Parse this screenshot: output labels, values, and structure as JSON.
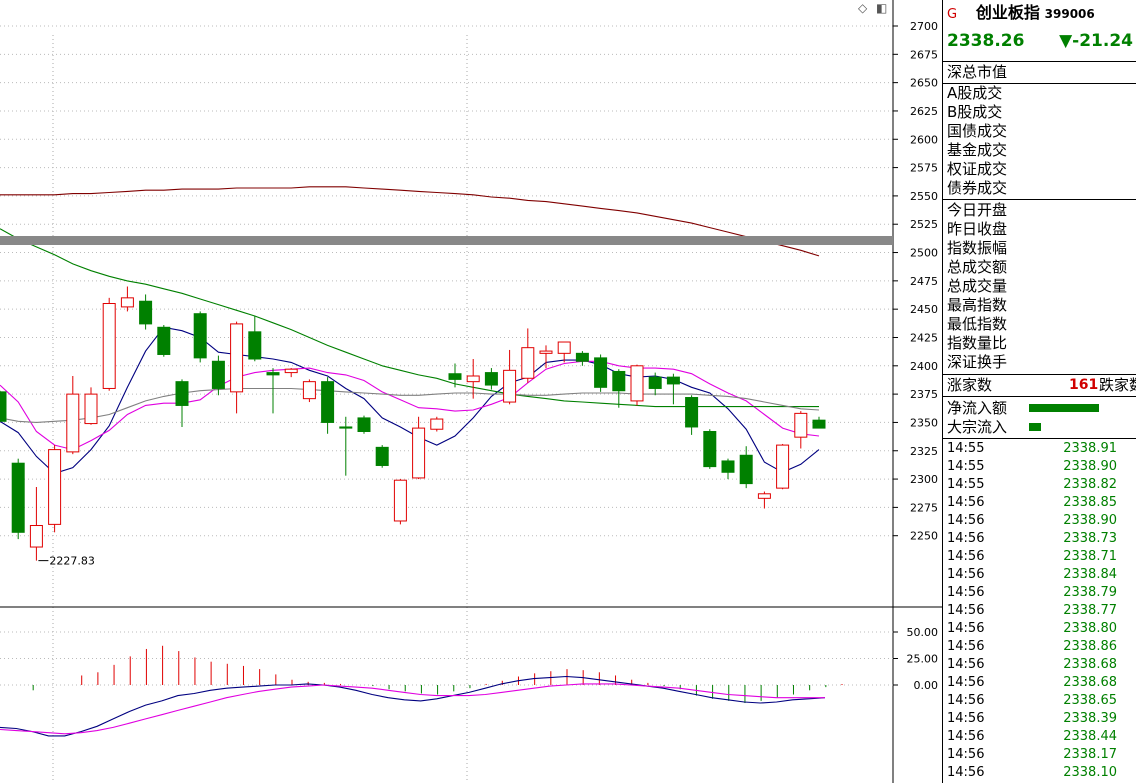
{
  "header": {
    "logo_letter": "G",
    "index_name": "创业板指",
    "index_code": "399006",
    "last_price": "2338.26",
    "change": "▼-21.24"
  },
  "panel": {
    "market_label": "深总市值",
    "trade_labels": [
      "A股成交",
      "B股成交",
      "国债成交",
      "基金成交",
      "权证成交",
      "债券成交"
    ],
    "index_labels": [
      "今日开盘",
      "昨日收盘",
      "指数振幅",
      "总成交额",
      "总成交量",
      "最高指数",
      "最低指数",
      "指数量比",
      "深证换手"
    ],
    "rise_label": "涨家数",
    "rise_count": "161",
    "fall_label": "跌家数",
    "net_inflow_label": "净流入额",
    "block_inflow_label": "大宗流入"
  },
  "ticks": [
    {
      "time": "14:55",
      "price": "2338.91"
    },
    {
      "time": "14:55",
      "price": "2338.90"
    },
    {
      "time": "14:55",
      "price": "2338.82"
    },
    {
      "time": "14:56",
      "price": "2338.85"
    },
    {
      "time": "14:56",
      "price": "2338.90"
    },
    {
      "time": "14:56",
      "price": "2338.73"
    },
    {
      "time": "14:56",
      "price": "2338.71"
    },
    {
      "time": "14:56",
      "price": "2338.84"
    },
    {
      "time": "14:56",
      "price": "2338.79"
    },
    {
      "time": "14:56",
      "price": "2338.77"
    },
    {
      "time": "14:56",
      "price": "2338.80"
    },
    {
      "time": "14:56",
      "price": "2338.86"
    },
    {
      "time": "14:56",
      "price": "2338.68"
    },
    {
      "time": "14:56",
      "price": "2338.68"
    },
    {
      "time": "14:56",
      "price": "2338.65"
    },
    {
      "time": "14:56",
      "price": "2338.39"
    },
    {
      "time": "14:56",
      "price": "2338.44"
    },
    {
      "time": "14:56",
      "price": "2338.17"
    },
    {
      "time": "14:56",
      "price": "2338.10"
    }
  ],
  "colors": {
    "up": "#e00000",
    "down": "#008000",
    "ma_short": "#000080",
    "ma_mid": "#e000e0",
    "ma_long": "#008000",
    "ma_longer": "#808080",
    "ma_longest": "#800000"
  },
  "chart_data": [
    {
      "type": "candlestick",
      "ylim": [
        2225,
        2715
      ],
      "yticks": [
        "2700",
        "2675",
        "2650",
        "2625",
        "2600",
        "2575",
        "2550",
        "2525",
        "2500",
        "2475",
        "2450",
        "2425",
        "2400",
        "2375",
        "2350",
        "2325",
        "2300",
        "2275",
        "2250"
      ],
      "grid": true,
      "low_annotation": "2227.83",
      "candles": [
        {
          "o": 2377,
          "h": 2378,
          "l": 2351,
          "c": 2351
        },
        {
          "o": 2314,
          "h": 2318,
          "l": 2247,
          "c": 2253
        },
        {
          "o": 2240,
          "h": 2293,
          "l": 2228,
          "c": 2259
        },
        {
          "o": 2260,
          "h": 2330,
          "l": 2253,
          "c": 2326
        },
        {
          "o": 2324,
          "h": 2391,
          "l": 2322,
          "c": 2375
        },
        {
          "o": 2349,
          "h": 2381,
          "l": 2348,
          "c": 2375
        },
        {
          "o": 2380,
          "h": 2460,
          "l": 2378,
          "c": 2455
        },
        {
          "o": 2452,
          "h": 2470,
          "l": 2448,
          "c": 2460
        },
        {
          "o": 2457,
          "h": 2463,
          "l": 2432,
          "c": 2437
        },
        {
          "o": 2434,
          "h": 2436,
          "l": 2408,
          "c": 2410
        },
        {
          "o": 2386,
          "h": 2388,
          "l": 2346,
          "c": 2365
        },
        {
          "o": 2446,
          "h": 2448,
          "l": 2403,
          "c": 2407
        },
        {
          "o": 2404,
          "h": 2409,
          "l": 2374,
          "c": 2380
        },
        {
          "o": 2377,
          "h": 2439,
          "l": 2358,
          "c": 2437
        },
        {
          "o": 2430,
          "h": 2444,
          "l": 2404,
          "c": 2406
        },
        {
          "o": 2394,
          "h": 2398,
          "l": 2358,
          "c": 2392
        },
        {
          "o": 2394,
          "h": 2398,
          "l": 2390,
          "c": 2397
        },
        {
          "o": 2371,
          "h": 2388,
          "l": 2368,
          "c": 2386
        },
        {
          "o": 2386,
          "h": 2390,
          "l": 2340,
          "c": 2350
        },
        {
          "o": 2346,
          "h": 2355,
          "l": 2303,
          "c": 2345
        },
        {
          "o": 2354,
          "h": 2356,
          "l": 2340,
          "c": 2342
        },
        {
          "o": 2328,
          "h": 2330,
          "l": 2310,
          "c": 2312
        },
        {
          "o": 2263,
          "h": 2300,
          "l": 2260,
          "c": 2299
        },
        {
          "o": 2301,
          "h": 2355,
          "l": 2300,
          "c": 2345
        },
        {
          "o": 2344,
          "h": 2355,
          "l": 2342,
          "c": 2353
        },
        {
          "o": 2393,
          "h": 2402,
          "l": 2381,
          "c": 2388
        },
        {
          "o": 2386,
          "h": 2406,
          "l": 2371,
          "c": 2391
        },
        {
          "o": 2394,
          "h": 2398,
          "l": 2379,
          "c": 2383
        },
        {
          "o": 2368,
          "h": 2414,
          "l": 2366,
          "c": 2396
        },
        {
          "o": 2389,
          "h": 2433,
          "l": 2385,
          "c": 2416
        },
        {
          "o": 2411,
          "h": 2418,
          "l": 2398,
          "c": 2413
        },
        {
          "o": 2411,
          "h": 2421,
          "l": 2403,
          "c": 2421
        },
        {
          "o": 2411,
          "h": 2413,
          "l": 2400,
          "c": 2404
        },
        {
          "o": 2407,
          "h": 2410,
          "l": 2377,
          "c": 2381
        },
        {
          "o": 2395,
          "h": 2397,
          "l": 2363,
          "c": 2378
        },
        {
          "o": 2369,
          "h": 2401,
          "l": 2365,
          "c": 2400
        },
        {
          "o": 2390,
          "h": 2394,
          "l": 2374,
          "c": 2380
        },
        {
          "o": 2390,
          "h": 2393,
          "l": 2366,
          "c": 2384
        },
        {
          "o": 2372,
          "h": 2374,
          "l": 2339,
          "c": 2346
        },
        {
          "o": 2342,
          "h": 2344,
          "l": 2309,
          "c": 2311
        },
        {
          "o": 2316,
          "h": 2318,
          "l": 2300,
          "c": 2306
        },
        {
          "o": 2321,
          "h": 2329,
          "l": 2292,
          "c": 2296
        },
        {
          "o": 2283,
          "h": 2289,
          "l": 2274,
          "c": 2287
        },
        {
          "o": 2292,
          "h": 2331,
          "l": 2291,
          "c": 2330
        },
        {
          "o": 2337,
          "h": 2360,
          "l": 2327,
          "c": 2358
        },
        {
          "o": 2352,
          "h": 2355,
          "l": 2345,
          "c": 2345
        }
      ],
      "ma_lines": [
        {
          "name": "ma_short",
          "values": [
            2351,
            2341,
            2320,
            2305,
            2310,
            2326,
            2347,
            2381,
            2413,
            2434,
            2431,
            2425,
            2412,
            2410,
            2408,
            2406,
            2403,
            2396,
            2391,
            2380,
            2371,
            2354,
            2346,
            2337,
            2330,
            2338,
            2354,
            2373,
            2385,
            2390,
            2403,
            2405,
            2405,
            2401,
            2393,
            2390,
            2391,
            2388,
            2381,
            2376,
            2362,
            2344,
            2315,
            2306,
            2313,
            2326
          ]
        },
        {
          "name": "ma_mid",
          "values": [
            2383,
            2368,
            2342,
            2330,
            2326,
            2334,
            2343,
            2357,
            2365,
            2367,
            2367,
            2370,
            2382,
            2390,
            2394,
            2396,
            2397,
            2398,
            2394,
            2392,
            2387,
            2377,
            2370,
            2363,
            2362,
            2360,
            2361,
            2366,
            2372,
            2385,
            2397,
            2402,
            2404,
            2404,
            2400,
            2398,
            2398,
            2397,
            2393,
            2384,
            2376,
            2369,
            2357,
            2345,
            2340,
            2338
          ]
        },
        {
          "name": "ma_long",
          "values": [
            2521,
            2512,
            2505,
            2498,
            2490,
            2484,
            2479,
            2475,
            2472,
            2468,
            2464,
            2459,
            2454,
            2449,
            2444,
            2438,
            2432,
            2425,
            2418,
            2412,
            2406,
            2400,
            2396,
            2392,
            2389,
            2384,
            2381,
            2378,
            2375,
            2373,
            2371,
            2369,
            2368,
            2367,
            2366,
            2365,
            2364,
            2364,
            2364,
            2364,
            2364,
            2364,
            2364,
            2364,
            2364,
            2364
          ]
        },
        {
          "name": "ma_longer",
          "values": [
            2354,
            2351,
            2350,
            2351,
            2352,
            2354,
            2357,
            2363,
            2369,
            2373,
            2376,
            2378,
            2379,
            2380,
            2380,
            2380,
            2380,
            2379,
            2378,
            2377,
            2376,
            2375,
            2374,
            2374,
            2375,
            2376,
            2376,
            2375,
            2375,
            2374,
            2374,
            2375,
            2376,
            2376,
            2376,
            2375,
            2375,
            2375,
            2375,
            2374,
            2373,
            2371,
            2368,
            2365,
            2362,
            2361
          ]
        },
        {
          "name": "ma_longest",
          "values": [
            2551,
            2551,
            2551,
            2551,
            2552,
            2552,
            2553,
            2554,
            2555,
            2555,
            2556,
            2556,
            2556,
            2557,
            2557,
            2557,
            2557,
            2558,
            2558,
            2558,
            2557,
            2556,
            2555,
            2554,
            2553,
            2552,
            2551,
            2549,
            2548,
            2546,
            2545,
            2543,
            2541,
            2539,
            2537,
            2535,
            2532,
            2529,
            2526,
            2522,
            2518,
            2514,
            2510,
            2506,
            2502,
            2497
          ]
        }
      ]
    },
    {
      "type": "macd",
      "ylim": [
        -60,
        58
      ],
      "yticks": [
        "50.00",
        "25.00",
        "0.00"
      ],
      "histogram": [
        0,
        -5,
        0,
        0,
        9,
        12,
        19,
        27,
        34,
        37,
        32,
        26,
        22,
        20,
        18,
        15,
        10,
        5,
        3,
        2,
        1,
        0,
        -1,
        -4,
        -6,
        -8,
        -9,
        -6,
        -3,
        1,
        4,
        8,
        11,
        13,
        15,
        14,
        12,
        9,
        5,
        2,
        -1,
        -4,
        -10,
        -13,
        -15,
        -17,
        -15,
        -12,
        -9,
        -5,
        -2,
        1
      ],
      "dif": [
        -40,
        -41,
        -44,
        -48,
        -48,
        -44,
        -39,
        -32,
        -25,
        -19,
        -15,
        -10,
        -8,
        -5,
        -3,
        -2,
        -1,
        0,
        0,
        1,
        0,
        -2,
        -5,
        -9,
        -12,
        -14,
        -15,
        -13,
        -10,
        -7,
        -3,
        1,
        4,
        6,
        7,
        8,
        7,
        5,
        3,
        1,
        -1,
        -3,
        -6,
        -9,
        -12,
        -14,
        -16,
        -17,
        -16,
        -14,
        -13,
        -12
      ],
      "dea": [
        -42,
        -43,
        -44,
        -45,
        -46,
        -45,
        -43,
        -40,
        -36,
        -32,
        -28,
        -24,
        -20,
        -16,
        -12,
        -9,
        -6,
        -4,
        -2,
        -1,
        0,
        -1,
        -2,
        -3,
        -5,
        -7,
        -9,
        -10,
        -10,
        -10,
        -9,
        -7,
        -5,
        -3,
        -1,
        0,
        1,
        1,
        1,
        0,
        -1,
        -2,
        -3,
        -5,
        -7,
        -9,
        -10,
        -11,
        -12,
        -12,
        -12,
        -12
      ]
    }
  ]
}
